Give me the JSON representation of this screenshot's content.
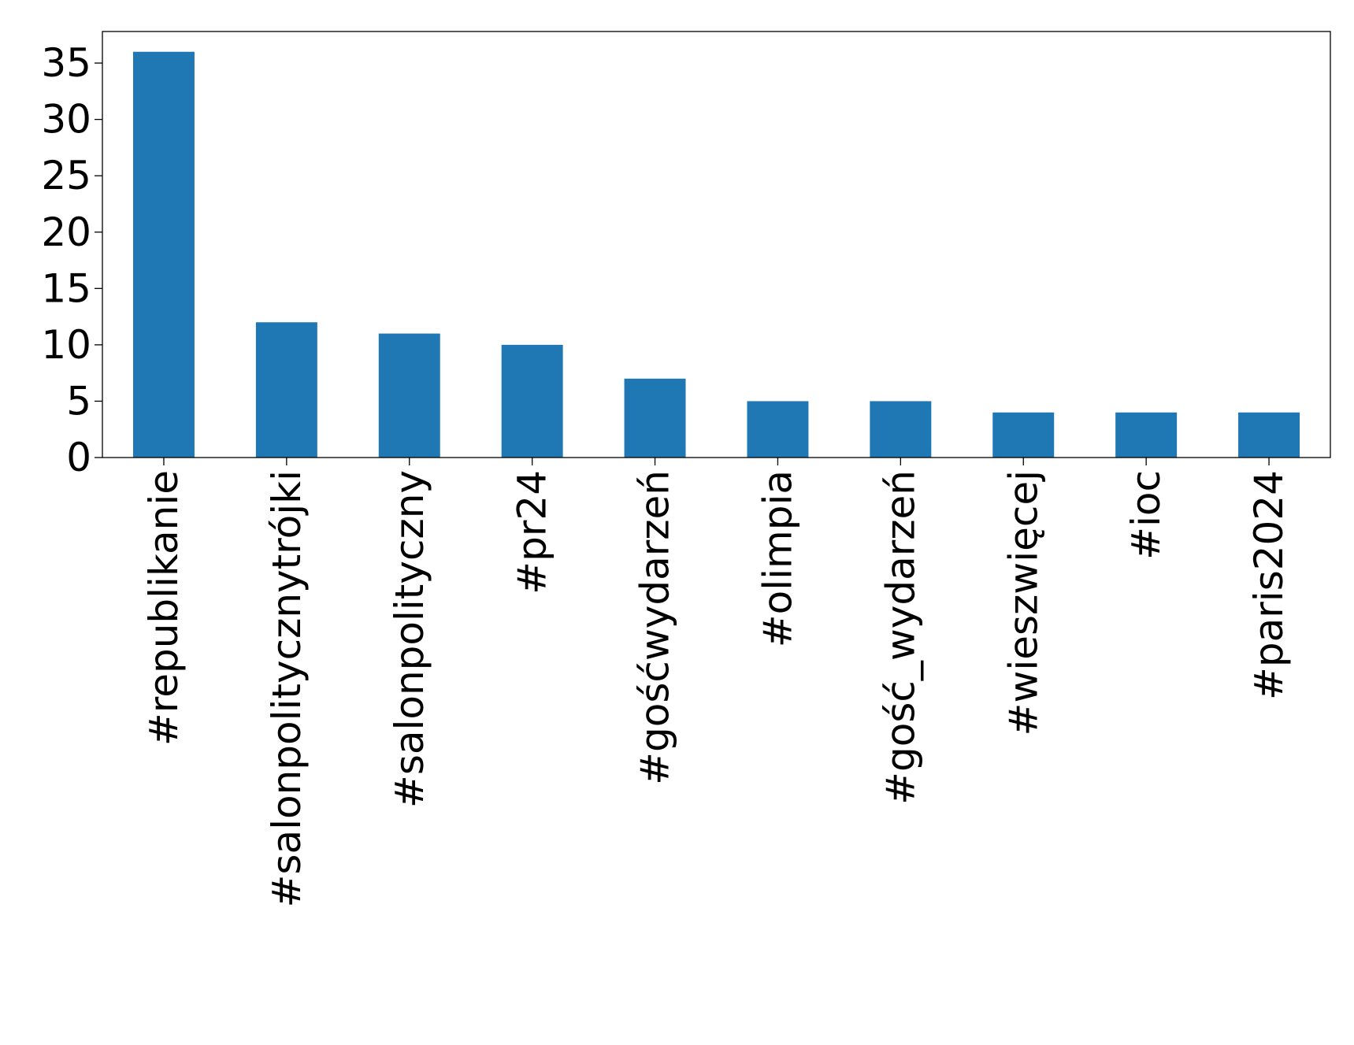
{
  "chart_data": {
    "type": "bar",
    "title": "",
    "xlabel": "",
    "ylabel": "",
    "categories": [
      "#republikanie",
      "#salonpolitycznytrójki",
      "#salonpolityczny",
      "#pr24",
      "#gośćwydarzeń",
      "#olimpia",
      "#gość_wydarzeń",
      "#wieszwięcej",
      "#ioc",
      "#paris2024"
    ],
    "values": [
      36,
      12,
      11,
      10,
      7,
      5,
      5,
      4,
      4,
      4
    ],
    "ylim": [
      0,
      37.8
    ],
    "yticks": [
      0,
      5,
      10,
      15,
      20,
      25,
      30,
      35
    ],
    "bar_color": "#1f77b4",
    "grid": false,
    "legend": "none"
  }
}
